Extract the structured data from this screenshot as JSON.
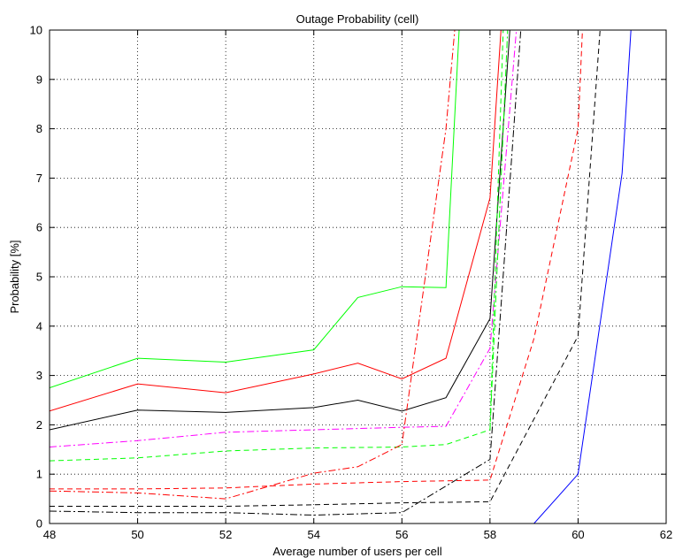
{
  "chart_data": {
    "type": "line",
    "title": "Outage Probability (cell)",
    "xlabel": "Average number of users per cell",
    "ylabel": "Probability [%]",
    "xlim": [
      48,
      62
    ],
    "ylim": [
      0,
      10
    ],
    "xticks": [
      48,
      50,
      52,
      54,
      56,
      58,
      60,
      62
    ],
    "yticks": [
      0,
      1,
      2,
      3,
      4,
      5,
      6,
      7,
      8,
      9,
      10
    ],
    "grid": true,
    "series": [
      {
        "color": "#00ff00",
        "dash": "solid",
        "x": [
          48,
          50,
          52,
          54,
          55,
          56,
          57,
          57.3
        ],
        "y": [
          2.75,
          3.35,
          3.27,
          3.52,
          4.58,
          4.8,
          4.78,
          10
        ]
      },
      {
        "color": "#ff0000",
        "dash": "solid",
        "x": [
          48,
          50,
          52,
          54,
          55,
          56,
          57,
          58,
          58.25
        ],
        "y": [
          2.28,
          2.83,
          2.65,
          3.03,
          3.25,
          2.93,
          3.35,
          6.6,
          10
        ]
      },
      {
        "color": "#000000",
        "dash": "solid",
        "x": [
          48,
          50,
          52,
          54,
          55,
          56,
          57,
          58,
          58.45
        ],
        "y": [
          1.9,
          2.3,
          2.25,
          2.35,
          2.5,
          2.28,
          2.55,
          4.15,
          10
        ]
      },
      {
        "color": "#ff00ff",
        "dash": "dashdot",
        "x": [
          48,
          50,
          52,
          54,
          56,
          57,
          58,
          58.6
        ],
        "y": [
          1.55,
          1.68,
          1.85,
          1.9,
          1.95,
          1.97,
          3.55,
          10
        ]
      },
      {
        "color": "#00ff00",
        "dash": "dashed",
        "x": [
          48,
          50,
          52,
          54,
          56,
          57,
          58,
          58.3
        ],
        "y": [
          1.27,
          1.33,
          1.47,
          1.53,
          1.55,
          1.6,
          1.9,
          10
        ]
      },
      {
        "color": "#ff0000",
        "dash": "dashdot",
        "x": [
          48,
          50,
          52,
          54,
          55,
          56,
          57,
          57.2
        ],
        "y": [
          0.66,
          0.62,
          0.5,
          1.02,
          1.15,
          1.6,
          8.0,
          10
        ]
      },
      {
        "color": "#ff0000",
        "dash": "dashed",
        "x": [
          48,
          50,
          52,
          54,
          56,
          58,
          59,
          60,
          60.1
        ],
        "y": [
          0.7,
          0.7,
          0.72,
          0.8,
          0.85,
          0.88,
          3.75,
          8.0,
          10
        ]
      },
      {
        "color": "#000000",
        "dash": "dashed",
        "x": [
          48,
          50,
          52,
          54,
          56,
          58,
          60,
          60.5
        ],
        "y": [
          0.35,
          0.35,
          0.35,
          0.38,
          0.42,
          0.44,
          3.8,
          10
        ]
      },
      {
        "color": "#000000",
        "dash": "dashdot",
        "x": [
          48,
          50,
          52,
          54,
          56,
          58,
          58.7
        ],
        "y": [
          0.25,
          0.22,
          0.22,
          0.17,
          0.22,
          1.3,
          10
        ]
      },
      {
        "color": "#00ff00",
        "dash": "dashdot",
        "x": [
          58,
          58.4
        ],
        "y": [
          1.9,
          10
        ]
      },
      {
        "color": "#0000ff",
        "dash": "solid",
        "x": [
          48,
          59,
          60,
          61,
          61.2
        ],
        "y": [
          0,
          0,
          1.0,
          7.1,
          10
        ]
      }
    ]
  }
}
